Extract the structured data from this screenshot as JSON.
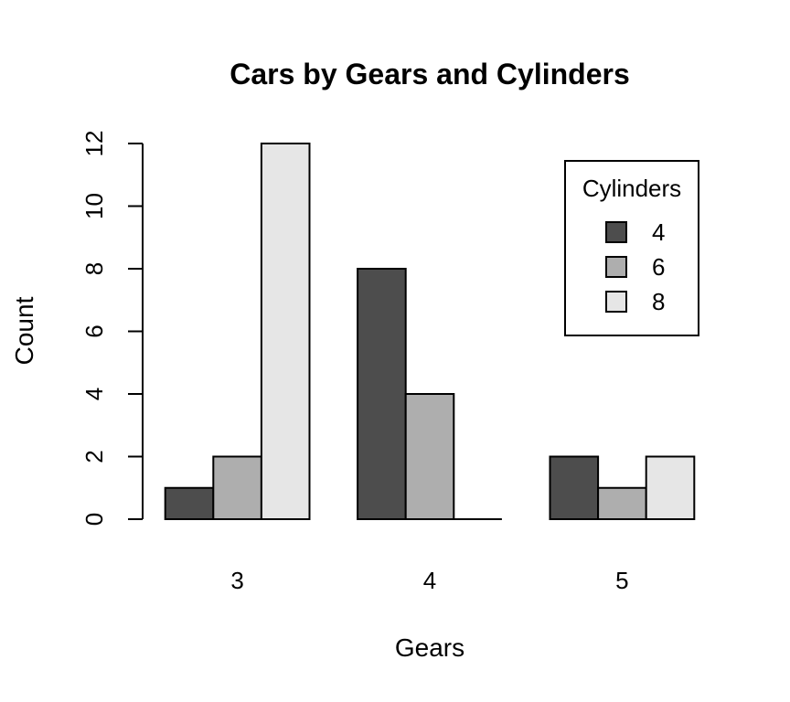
{
  "chart_data": {
    "type": "bar",
    "mode": "grouped",
    "title": "Cars by Gears and Cylinders",
    "xlabel": "Gears",
    "ylabel": "Count",
    "categories": [
      "3",
      "4",
      "5"
    ],
    "series": [
      {
        "name": "4",
        "values": [
          1,
          8,
          2
        ],
        "color": "#4d4d4d"
      },
      {
        "name": "6",
        "values": [
          2,
          4,
          1
        ],
        "color": "#aeaeae"
      },
      {
        "name": "8",
        "values": [
          12,
          0,
          2
        ],
        "color": "#e6e6e6"
      }
    ],
    "yticks": [
      "0",
      "2",
      "4",
      "6",
      "8",
      "10",
      "12"
    ],
    "ylim": [
      0,
      12
    ],
    "grid": false,
    "legend": {
      "title": "Cylinders",
      "position": "top-right"
    }
  }
}
